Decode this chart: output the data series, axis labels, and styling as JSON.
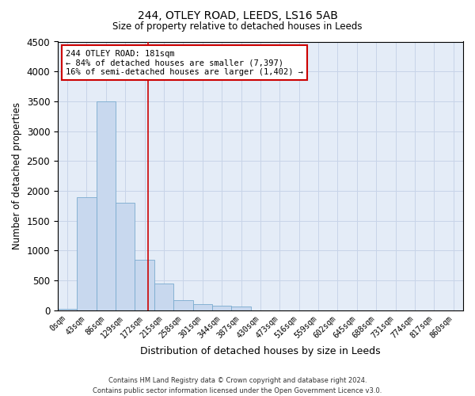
{
  "title": "244, OTLEY ROAD, LEEDS, LS16 5AB",
  "subtitle": "Size of property relative to detached houses in Leeds",
  "xlabel": "Distribution of detached houses by size in Leeds",
  "ylabel": "Number of detached properties",
  "bar_color": "#c8d8ee",
  "bar_edge_color": "#7aabcf",
  "categories": [
    "0sqm",
    "43sqm",
    "86sqm",
    "129sqm",
    "172sqm",
    "215sqm",
    "258sqm",
    "301sqm",
    "344sqm",
    "387sqm",
    "430sqm",
    "473sqm",
    "516sqm",
    "559sqm",
    "602sqm",
    "645sqm",
    "688sqm",
    "731sqm",
    "774sqm",
    "817sqm",
    "860sqm"
  ],
  "values": [
    20,
    1900,
    3500,
    1800,
    850,
    450,
    175,
    105,
    75,
    60,
    0,
    0,
    0,
    0,
    0,
    0,
    0,
    0,
    0,
    0,
    0
  ],
  "ylim": [
    0,
    4500
  ],
  "yticks": [
    0,
    500,
    1000,
    1500,
    2000,
    2500,
    3000,
    3500,
    4000,
    4500
  ],
  "vline_x": 4.19,
  "vline_color": "#cc0000",
  "annotation_line1": "244 OTLEY ROAD: 181sqm",
  "annotation_line2": "← 84% of detached houses are smaller (7,397)",
  "annotation_line3": "16% of semi-detached houses are larger (1,402) →",
  "annotation_box_edge": "#cc0000",
  "footer_line1": "Contains HM Land Registry data © Crown copyright and database right 2024.",
  "footer_line2": "Contains public sector information licensed under the Open Government Licence v3.0.",
  "grid_color": "#c8d4e8",
  "bg_color": "#e4ecf7"
}
